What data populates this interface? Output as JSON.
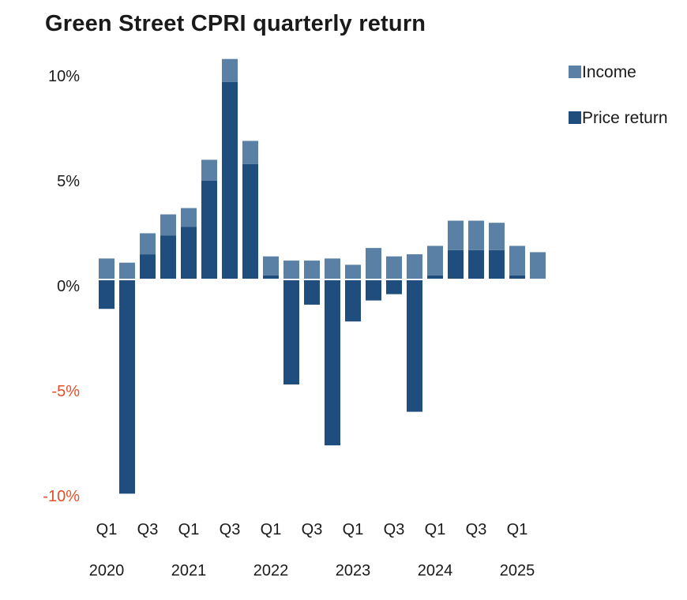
{
  "chart_data": {
    "type": "bar",
    "stacked": true,
    "title": "Green Street CPRI quarterly return",
    "xlabel": "",
    "ylabel": "",
    "ylim": [
      -10.5,
      10.8
    ],
    "yticks": [
      10,
      5,
      0,
      -5,
      -10
    ],
    "ytick_labels": [
      "10%",
      "5%",
      "0%",
      "-5%",
      "-10%"
    ],
    "negative_tick_color": "#e0502a",
    "categories": [
      "Q1 2020",
      "Q2 2020",
      "Q3 2020",
      "Q4 2020",
      "Q1 2021",
      "Q2 2021",
      "Q3 2021",
      "Q4 2021",
      "Q1 2022",
      "Q2 2022",
      "Q3 2022",
      "Q4 2022",
      "Q1 2023",
      "Q2 2023",
      "Q3 2023",
      "Q4 2023",
      "Q1 2024",
      "Q2 2024",
      "Q3 2024",
      "Q4 2024",
      "Q1 2025",
      "Q2 2025"
    ],
    "quarter_labels": [
      {
        "index": 0,
        "text": "Q1"
      },
      {
        "index": 2,
        "text": "Q3"
      },
      {
        "index": 4,
        "text": "Q1"
      },
      {
        "index": 6,
        "text": "Q3"
      },
      {
        "index": 8,
        "text": "Q1"
      },
      {
        "index": 10,
        "text": "Q3"
      },
      {
        "index": 12,
        "text": "Q1"
      },
      {
        "index": 14,
        "text": "Q3"
      },
      {
        "index": 16,
        "text": "Q1"
      },
      {
        "index": 18,
        "text": "Q3"
      },
      {
        "index": 20,
        "text": "Q1"
      }
    ],
    "year_labels": [
      {
        "index": 0,
        "text": "2020"
      },
      {
        "index": 4,
        "text": "2021"
      },
      {
        "index": 8,
        "text": "2022"
      },
      {
        "index": 12,
        "text": "2023"
      },
      {
        "index": 16,
        "text": "2024"
      },
      {
        "index": 20,
        "text": "2025"
      }
    ],
    "series": [
      {
        "name": "Price return",
        "color": "#1f4e7e",
        "values": [
          -1.4,
          -10.2,
          1.2,
          2.1,
          2.5,
          4.7,
          9.4,
          5.5,
          0.2,
          -5.0,
          -1.2,
          -7.9,
          -2.0,
          -1.0,
          -0.7,
          -6.3,
          0.2,
          1.4,
          1.4,
          1.4,
          0.2,
          0.0
        ]
      },
      {
        "name": "Income",
        "color": "#5a80a6",
        "values": [
          1.0,
          0.8,
          1.0,
          1.0,
          0.9,
          1.0,
          1.1,
          1.1,
          0.9,
          0.9,
          0.9,
          1.0,
          0.7,
          1.5,
          1.1,
          1.2,
          1.4,
          1.4,
          1.4,
          1.3,
          1.4,
          1.3
        ]
      }
    ],
    "legend": {
      "placement": "top-right",
      "order": [
        "Income",
        "Price return"
      ]
    },
    "grid": false
  }
}
